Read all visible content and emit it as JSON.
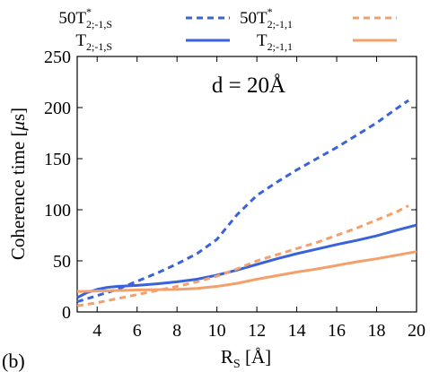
{
  "panel_label": "(b)",
  "chart_data": {
    "type": "line",
    "annotation": "d = 20Å",
    "xlabel": {
      "main": "R",
      "sub": "S",
      "unit": " [Å]"
    },
    "ylabel": {
      "prefix": "Coherence time  [",
      "mu": "μ",
      "unit": "s]"
    },
    "xlim": [
      3,
      20
    ],
    "ylim": [
      0,
      250
    ],
    "xticks": [
      4,
      6,
      8,
      10,
      12,
      14,
      16,
      18,
      20
    ],
    "yticks": [
      0,
      50,
      100,
      150,
      200,
      250
    ],
    "grid": false,
    "legend_position": "top",
    "series": [
      {
        "key": "50T2s",
        "legend": {
          "prefix": "50T",
          "sup": "*",
          "sub": "2;-1,S"
        },
        "color": "#3a62d9",
        "dashed": true,
        "x": [
          3,
          4,
          5,
          6,
          7,
          8,
          9,
          10,
          11,
          12,
          13,
          14,
          15,
          16,
          17,
          18,
          19,
          19.6
        ],
        "y": [
          10,
          16,
          22,
          30,
          38,
          47,
          57,
          71,
          95,
          114,
          127,
          139,
          150,
          161,
          173,
          185,
          199,
          207
        ]
      },
      {
        "key": "T2s",
        "legend": {
          "prefix": "T",
          "sup": "",
          "sub": "2;-1,S"
        },
        "color": "#3a62d9",
        "dashed": false,
        "x": [
          3,
          3.5,
          4,
          4.5,
          5,
          6,
          7,
          8,
          9,
          10,
          11,
          12,
          13,
          14,
          15,
          16,
          17,
          18,
          19,
          20
        ],
        "y": [
          14,
          19,
          22,
          24,
          25,
          26,
          27.5,
          29.5,
          32,
          36,
          41,
          46.5,
          52,
          57,
          61.5,
          66,
          70,
          74.5,
          80,
          85
        ]
      },
      {
        "key": "50T2_1",
        "legend": {
          "prefix": "50T",
          "sup": "*",
          "sub": "2;-1,1"
        },
        "color": "#f4a06b",
        "dashed": true,
        "x": [
          3,
          4,
          5,
          6,
          7,
          8,
          9,
          10,
          11,
          12,
          13,
          14,
          15,
          16,
          17,
          18,
          19,
          19.6
        ],
        "y": [
          6,
          9,
          13,
          17,
          21,
          25,
          29.5,
          35,
          42,
          50,
          56,
          62,
          68,
          75,
          82,
          90,
          98,
          104
        ]
      },
      {
        "key": "T2_1",
        "legend": {
          "prefix": "T",
          "sup": "",
          "sub": "2;-1,1"
        },
        "color": "#f4a06b",
        "dashed": false,
        "x": [
          3,
          4,
          5,
          6,
          7,
          8,
          9,
          10,
          11,
          12,
          13,
          14,
          15,
          16,
          17,
          18,
          19,
          20
        ],
        "y": [
          20,
          20.5,
          21,
          21.5,
          21.8,
          22,
          23,
          25,
          28,
          32,
          35.5,
          39,
          42,
          45.5,
          49,
          52,
          55.5,
          59
        ]
      }
    ]
  }
}
